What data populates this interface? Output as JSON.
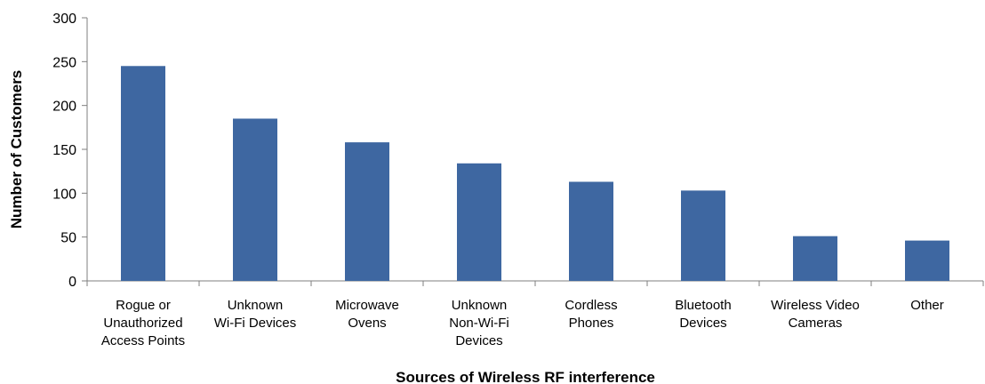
{
  "chart_data": {
    "type": "bar",
    "categories": [
      [
        "Rogue or",
        "Unauthorized",
        "Access Points"
      ],
      [
        "Unknown",
        "Wi-Fi Devices"
      ],
      [
        "Microwave",
        "Ovens"
      ],
      [
        "Unknown",
        "Non-Wi-Fi",
        "Devices"
      ],
      [
        "Cordless",
        "Phones"
      ],
      [
        "Bluetooth",
        "Devices"
      ],
      [
        "Wireless Video",
        "Cameras"
      ],
      [
        "Other"
      ]
    ],
    "values": [
      245,
      185,
      158,
      134,
      113,
      103,
      51,
      46
    ],
    "xlabel": "Sources of Wireless RF interference",
    "ylabel": "Number of Customers",
    "ylim": [
      0,
      300
    ],
    "yticks": [
      0,
      50,
      100,
      150,
      200,
      250,
      300
    ],
    "bar_color": "#3e67a1",
    "grid": false,
    "legend": "none"
  }
}
